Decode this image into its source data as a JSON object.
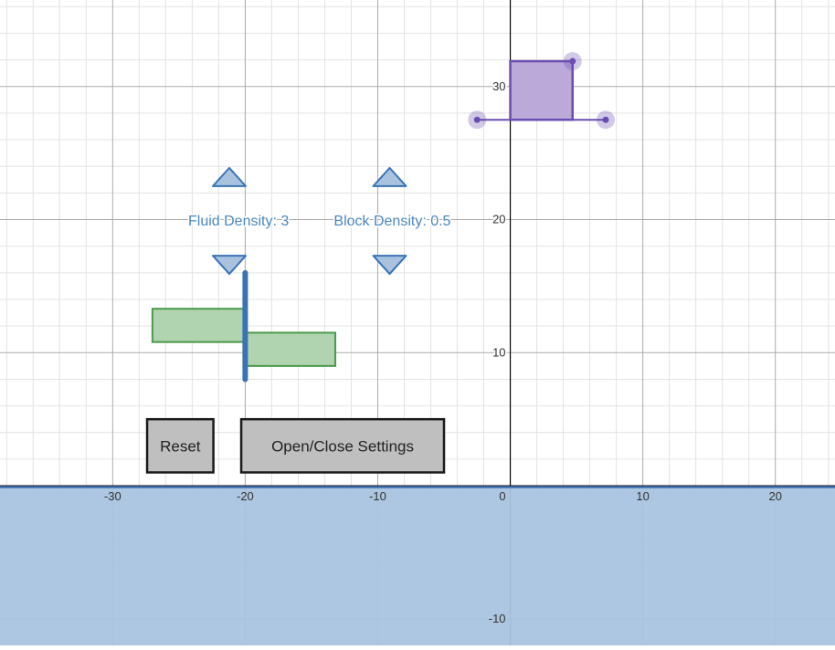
{
  "graph": {
    "x_range": [
      -38.5,
      24.5
    ],
    "y_range": [
      -12,
      36.5
    ],
    "minor_step": 2,
    "major_step": 10,
    "x_tick_labels": [
      "-30",
      "-20",
      "-10",
      "0",
      "10",
      "20"
    ],
    "y_tick_labels": [
      "30",
      "20",
      "10",
      "-10"
    ],
    "colors": {
      "minor_grid": "#e2e2e2",
      "major_grid": "#aaaaaa",
      "axis": "#000000",
      "water_fill": "#a9c3df",
      "water_line": "#3f6fb0"
    }
  },
  "water": {
    "level": -0.1
  },
  "controls": {
    "fluid_density_label": "Fluid Density: 3",
    "block_density_label": "Block Density: 0.5",
    "label_color": "#4a86c0",
    "arrow_fill": "#a9c3df",
    "arrow_stroke": "#3a73b5",
    "fluid_up_icon": "triangle-up-icon",
    "fluid_down_icon": "triangle-down-icon",
    "block_up_icon": "triangle-up-icon",
    "block_down_icon": "triangle-down-icon"
  },
  "buttons": {
    "reset_label": "Reset",
    "settings_label": "Open/Close Settings",
    "fill": "#bfbfbf",
    "stroke": "#1a1a1a"
  },
  "force_bars": {
    "color": "#3a73b5",
    "bar_fill": "#b0d4b0",
    "bar_stroke": "#4a9a4a",
    "top_bar": {
      "from": -27,
      "to": -20,
      "y_top": 13.3,
      "y_bottom": 10.8
    },
    "bottom_bar": {
      "from": -20,
      "to": -13.2,
      "y_top": 11.5,
      "y_bottom": 9
    },
    "divider": {
      "x": -20,
      "y_top": 16,
      "y_bottom": 8
    }
  },
  "block": {
    "x": 0,
    "y_bottom": 27.5,
    "width": 4.7,
    "height": 4.4,
    "fill": "#baa9d9",
    "stroke": "#6a4db0",
    "handle_color": "#6a4db0",
    "slider_left": -2.5,
    "slider_right": 7.2
  }
}
